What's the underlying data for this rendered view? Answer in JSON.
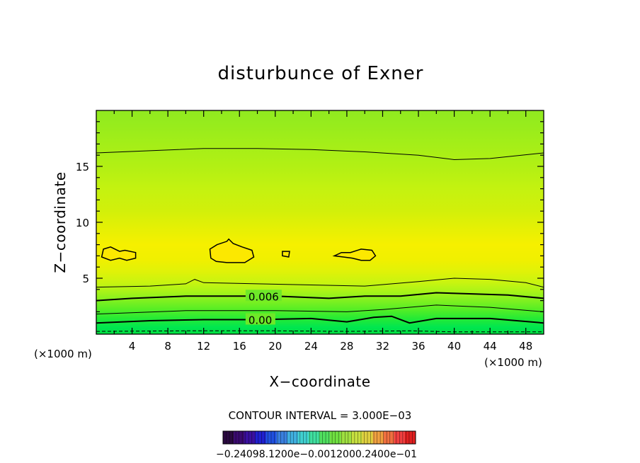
{
  "chart_data": {
    "type": "heatmap",
    "title": "disturbunce of Exner",
    "xlabel": "X−coordinate",
    "ylabel": "Z−coordinate",
    "x_unit": "(×1000 m)",
    "y_unit": "(×1000 m)",
    "xlim": [
      0,
      50
    ],
    "ylim": [
      0,
      20
    ],
    "x_ticks": [
      4,
      8,
      12,
      16,
      20,
      24,
      28,
      32,
      36,
      40,
      44,
      48
    ],
    "y_ticks": [
      5,
      10,
      15
    ],
    "contour_interval_text": "CONTOUR INTERVAL = 3.000E−03",
    "contour_interval": 0.003,
    "contour_labels": [
      {
        "text": "0.006",
        "value": 0.006,
        "x": 17,
        "z": 3.4
      },
      {
        "text": "0.00",
        "value": 0.0,
        "x": 17,
        "z": 1.3
      }
    ],
    "contours": [
      {
        "value": -0.003,
        "style": "dashed",
        "points": [
          [
            0,
            0.25
          ],
          [
            10,
            0.3
          ],
          [
            20,
            0.3
          ],
          [
            28,
            0.25
          ],
          [
            35,
            0.3
          ],
          [
            40,
            0.2
          ],
          [
            50,
            0.2
          ]
        ]
      },
      {
        "value": 0.0,
        "style": "bold",
        "points": [
          [
            0,
            1.0
          ],
          [
            6,
            1.2
          ],
          [
            12,
            1.3
          ],
          [
            18,
            1.3
          ],
          [
            24,
            1.4
          ],
          [
            28,
            1.1
          ],
          [
            31,
            1.5
          ],
          [
            33,
            1.6
          ],
          [
            35,
            1.0
          ],
          [
            38,
            1.4
          ],
          [
            44,
            1.4
          ],
          [
            50,
            1.0
          ]
        ]
      },
      {
        "value": 0.003,
        "style": "thin",
        "points": [
          [
            0,
            1.8
          ],
          [
            10,
            2.1
          ],
          [
            20,
            2.1
          ],
          [
            28,
            2.0
          ],
          [
            32,
            2.2
          ],
          [
            38,
            2.6
          ],
          [
            44,
            2.4
          ],
          [
            50,
            2.0
          ]
        ]
      },
      {
        "value": 0.006,
        "style": "bold",
        "points": [
          [
            0,
            3.0
          ],
          [
            4,
            3.2
          ],
          [
            10,
            3.4
          ],
          [
            14,
            3.4
          ],
          [
            20,
            3.4
          ],
          [
            26,
            3.2
          ],
          [
            30,
            3.4
          ],
          [
            34,
            3.4
          ],
          [
            38,
            3.7
          ],
          [
            42,
            3.6
          ],
          [
            46,
            3.5
          ],
          [
            50,
            3.2
          ]
        ]
      },
      {
        "value": 0.009,
        "style": "thin",
        "points": [
          [
            0,
            4.2
          ],
          [
            6,
            4.3
          ],
          [
            10,
            4.5
          ],
          [
            11,
            4.9
          ],
          [
            12,
            4.6
          ],
          [
            18,
            4.5
          ],
          [
            24,
            4.4
          ],
          [
            30,
            4.3
          ],
          [
            36,
            4.7
          ],
          [
            40,
            5.0
          ],
          [
            44,
            4.9
          ],
          [
            48,
            4.6
          ],
          [
            50,
            4.2
          ]
        ]
      },
      {
        "value": 0.012,
        "style": "thin",
        "points": [
          [
            0,
            16.2
          ],
          [
            6,
            16.4
          ],
          [
            12,
            16.6
          ],
          [
            18,
            16.6
          ],
          [
            24,
            16.5
          ],
          [
            30,
            16.3
          ],
          [
            36,
            16.0
          ],
          [
            40,
            15.6
          ],
          [
            44,
            15.7
          ],
          [
            50,
            16.2
          ]
        ]
      }
    ],
    "closed_contours": [
      {
        "value": 0.015,
        "points": [
          [
            0.6,
            6.9
          ],
          [
            0.8,
            7.6
          ],
          [
            1.6,
            7.8
          ],
          [
            2.6,
            7.4
          ],
          [
            3.2,
            7.5
          ],
          [
            4.4,
            7.3
          ],
          [
            4.4,
            6.8
          ],
          [
            3.4,
            6.6
          ],
          [
            2.6,
            6.8
          ],
          [
            1.6,
            6.6
          ]
        ]
      },
      {
        "value": 0.015,
        "points": [
          [
            12.8,
            6.8
          ],
          [
            12.7,
            7.6
          ],
          [
            13.5,
            8.0
          ],
          [
            14.6,
            8.3
          ],
          [
            14.8,
            8.5
          ],
          [
            15.3,
            8.1
          ],
          [
            16.3,
            7.8
          ],
          [
            17.4,
            7.5
          ],
          [
            17.6,
            6.9
          ],
          [
            16.6,
            6.4
          ],
          [
            14.6,
            6.4
          ],
          [
            13.4,
            6.5
          ]
        ]
      },
      {
        "value": 0.015,
        "points": [
          [
            20.8,
            7.0
          ],
          [
            20.8,
            7.4
          ],
          [
            21.6,
            7.4
          ],
          [
            21.5,
            6.9
          ]
        ]
      },
      {
        "value": 0.015,
        "points": [
          [
            26.6,
            7.0
          ],
          [
            27.4,
            7.3
          ],
          [
            28.4,
            7.3
          ],
          [
            29.6,
            7.6
          ],
          [
            30.8,
            7.5
          ],
          [
            31.2,
            7.0
          ],
          [
            30.6,
            6.6
          ],
          [
            29.6,
            6.6
          ],
          [
            28.6,
            6.8
          ],
          [
            27.6,
            6.9
          ]
        ]
      }
    ],
    "field_levels": [
      {
        "z": 0.0,
        "color": "#00e040"
      },
      {
        "z": 0.6,
        "color": "#00e650"
      },
      {
        "z": 1.4,
        "color": "#25ea35"
      },
      {
        "z": 2.2,
        "color": "#55ee25"
      },
      {
        "z": 3.0,
        "color": "#80f020"
      },
      {
        "z": 3.8,
        "color": "#a8f418"
      },
      {
        "z": 4.6,
        "color": "#c8f410"
      },
      {
        "z": 5.6,
        "color": "#e0f208"
      },
      {
        "z": 6.6,
        "color": "#f0f000"
      },
      {
        "z": 8.0,
        "color": "#f6f000"
      },
      {
        "z": 9.4,
        "color": "#e6f004"
      },
      {
        "z": 11.0,
        "color": "#d2f00a"
      },
      {
        "z": 13.0,
        "color": "#c4f210"
      },
      {
        "z": 15.0,
        "color": "#b2f014"
      },
      {
        "z": 17.0,
        "color": "#a4ee18"
      },
      {
        "z": 18.6,
        "color": "#98ec1c"
      },
      {
        "z": 20.0,
        "color": "#90ea20"
      }
    ],
    "colorbar": {
      "labels_text": "−0.24098.1200e−0.0012000.2400e−01",
      "colors": [
        "#2a0a40",
        "#3a0a70",
        "#3a10a0",
        "#2020d0",
        "#2050e0",
        "#3a80e0",
        "#40b0e0",
        "#40d0d0",
        "#40e0a0",
        "#50e060",
        "#70e040",
        "#a0e040",
        "#c8e040",
        "#e0d040",
        "#f0a040",
        "#f07040",
        "#f04040",
        "#e02020"
      ]
    }
  }
}
